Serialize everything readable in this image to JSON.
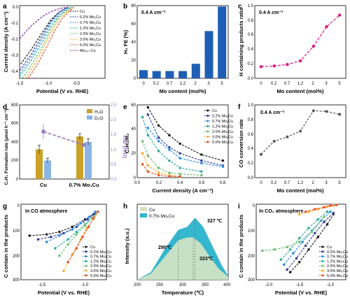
{
  "figure": {
    "colors": {
      "Cu": "#111111",
      "0.2%": "#283593",
      "0.7%": "#1e88e5",
      "1.2%": "#26a69a",
      "2.0%": "#66bb6a",
      "3.0%": "#f9a825",
      "5.0%": "#e64a19",
      "MoN": "#7b1fa2",
      "bar_blue": "#1e5eb5",
      "magenta": "#d81b80",
      "gold": "#c9a227",
      "lightblue": "#8ab6e6",
      "purple": "#9a7bbd"
    }
  },
  "chart_data": [
    {
      "panel": "a",
      "type": "line",
      "xlabel": "Potential (V vs. RHE)",
      "ylabel": "Current density (A cm⁻²)",
      "xlim": [
        -1.5,
        0
      ],
      "ylim": [
        -0.45,
        0
      ],
      "xticks": [
        "-1.5",
        "-1.0",
        "-0.5"
      ],
      "yticks": [
        "0.0",
        "-0.1",
        "-0.2",
        "-0.3",
        "-0.4"
      ],
      "legend": [
        "Cu",
        "0.2% Mo₁Cu",
        "0.7% Mo₁Cu",
        "1.2% Mo₁Cu",
        "2.0% Mo₁Cu",
        "3.0% Mo₁Cu",
        "5.0% Mo₁Cu",
        "Moₙₚₛ-Cu"
      ],
      "series": [
        {
          "name": "Cu",
          "x": [
            -1.48,
            -1.3,
            -1.1,
            -0.95,
            -0.8,
            -0.65
          ],
          "y": [
            -0.36,
            -0.27,
            -0.16,
            -0.08,
            -0.03,
            0.0
          ]
        },
        {
          "name": "0.2% Mo₁Cu",
          "x": [
            -1.5,
            -1.3,
            -1.1,
            -0.95,
            -0.8,
            -0.65
          ],
          "y": [
            -0.4,
            -0.3,
            -0.18,
            -0.09,
            -0.03,
            0.0
          ]
        },
        {
          "name": "0.7% Mo₁Cu",
          "x": [
            -1.5,
            -1.3,
            -1.1,
            -0.95,
            -0.8,
            -0.62
          ],
          "y": [
            -0.42,
            -0.32,
            -0.2,
            -0.1,
            -0.04,
            0.0
          ]
        },
        {
          "name": "1.2% Mo₁Cu",
          "x": [
            -1.5,
            -1.3,
            -1.1,
            -0.95,
            -0.8,
            -0.6
          ],
          "y": [
            -0.44,
            -0.34,
            -0.22,
            -0.12,
            -0.05,
            0.0
          ]
        },
        {
          "name": "2.0% Mo₁Cu",
          "x": [
            -1.45,
            -1.3,
            -1.1,
            -0.95,
            -0.8,
            -0.58
          ],
          "y": [
            -0.45,
            -0.37,
            -0.25,
            -0.14,
            -0.06,
            0.0
          ]
        },
        {
          "name": "3.0% Mo₁Cu",
          "x": [
            -1.4,
            -1.25,
            -1.1,
            -0.95,
            -0.8,
            -0.55
          ],
          "y": [
            -0.45,
            -0.37,
            -0.27,
            -0.16,
            -0.07,
            0.0
          ]
        },
        {
          "name": "5.0% Mo₁Cu",
          "x": [
            -1.35,
            -1.2,
            -1.05,
            -0.9,
            -0.75,
            -0.55
          ],
          "y": [
            -0.45,
            -0.37,
            -0.27,
            -0.16,
            -0.07,
            0.0
          ]
        },
        {
          "name": "Moₙₚₛ-Cu",
          "x": [
            -1.5,
            -1.3,
            -1.1,
            -0.95,
            -0.8,
            -0.65
          ],
          "y": [
            -0.2,
            -0.12,
            -0.06,
            -0.03,
            -0.01,
            0.0
          ]
        }
      ]
    },
    {
      "panel": "b",
      "type": "bar",
      "title": "0.4 A cm⁻²",
      "xlabel": "Mo content (mol%)",
      "ylabel": "H₂ FE (%)",
      "categories": [
        "0",
        "0.2",
        "0.7",
        "1.2",
        "2",
        "3",
        "5"
      ],
      "values": [
        9,
        8,
        8,
        8,
        16,
        52,
        79
      ],
      "ylim": [
        0,
        80
      ],
      "yticks": [
        "0",
        "20",
        "40",
        "60",
        "80"
      ]
    },
    {
      "panel": "c",
      "type": "line",
      "title": "0.4 A cm⁻²",
      "xlabel": "Mo content (mol%)",
      "ylabel": "H containing products ratio",
      "categories": [
        "0",
        "0.2",
        "0.7",
        "1.2",
        "2",
        "3",
        "5"
      ],
      "values": [
        0.16,
        0.17,
        0.19,
        0.24,
        0.44,
        0.71,
        0.87
      ],
      "ylim": [
        0,
        1.0
      ],
      "yticks": [
        "0.0",
        "0.2",
        "0.4",
        "0.6",
        "0.8",
        "1.0"
      ]
    },
    {
      "panel": "d",
      "type": "bar",
      "xlabel": "",
      "ylabel": "C₂H₄ Formation rate (μmol h⁻¹ cm⁻²)",
      "y2label": "KIE (H/D)",
      "categories": [
        "Cu",
        "0.7% Mo₁Cu"
      ],
      "series": [
        {
          "name": "H₂O",
          "values": [
            320,
            460
          ],
          "errors": [
            45,
            30
          ]
        },
        {
          "name": "D₂O",
          "values": [
            200,
            400
          ],
          "errors": [
            25,
            35
          ]
        }
      ],
      "kie": {
        "values": [
          1.6,
          1.15
        ],
        "errors": [
          0.25,
          0.05
        ]
      },
      "ylim": [
        0,
        800
      ],
      "y2lim": [
        0,
        2.5
      ],
      "yticks": [
        "0",
        "200",
        "400",
        "600",
        "800"
      ],
      "y2ticks": [
        "0.0",
        "0.5",
        "1.0",
        "1.5",
        "2.0",
        "2.5"
      ]
    },
    {
      "panel": "e",
      "type": "line",
      "xlabel": "Current density (A cm⁻²)",
      "ylabel": "C₂H₄/H₂",
      "xlim": [
        0,
        0.85
      ],
      "ylim": [
        0,
        60
      ],
      "xticks": [
        "0.0",
        "0.2",
        "0.4",
        "0.6",
        "0.8"
      ],
      "yticks": [
        "0",
        "20",
        "40",
        "60"
      ],
      "legend": [
        "Cu",
        "0.2% Mo₁Cu",
        "0.7% Mo₁Cu",
        "1.2% Mo₁Cu",
        "2.0% Mo₁Cu",
        "3.0% Mo₁Cu",
        "5.0% Mo₁Cu"
      ],
      "series": [
        {
          "name": "Cu",
          "x": [
            0.1,
            0.2,
            0.3,
            0.4,
            0.6,
            0.8
          ],
          "y": [
            58,
            43,
            35,
            28,
            19,
            14
          ]
        },
        {
          "name": "0.2% Mo₁Cu",
          "x": [
            0.1,
            0.2,
            0.3,
            0.4,
            0.6,
            0.8
          ],
          "y": [
            52,
            33,
            25,
            20,
            14,
            10
          ]
        },
        {
          "name": "0.7% Mo₁Cu",
          "x": [
            0.1,
            0.2,
            0.3,
            0.4,
            0.6,
            0.8
          ],
          "y": [
            41,
            30,
            23,
            16,
            12,
            9
          ]
        },
        {
          "name": "1.2% Mo₁Cu",
          "x": [
            0.05,
            0.1,
            0.2,
            0.3,
            0.4,
            0.6
          ],
          "y": [
            50,
            35,
            22,
            14,
            8,
            5
          ]
        },
        {
          "name": "2.0% Mo₁Cu",
          "x": [
            0.05,
            0.1,
            0.2,
            0.3,
            0.4,
            0.6
          ],
          "y": [
            30,
            18,
            8,
            4,
            3,
            2
          ]
        },
        {
          "name": "3.0% Mo₁Cu",
          "x": [
            0.05,
            0.1,
            0.2,
            0.3,
            0.4
          ],
          "y": [
            20,
            10,
            4,
            2,
            1
          ]
        },
        {
          "name": "5.0% Mo₁Cu",
          "x": [
            0.05,
            0.1,
            0.2,
            0.3,
            0.4
          ],
          "y": [
            11,
            5,
            2,
            1,
            1
          ]
        }
      ]
    },
    {
      "panel": "f",
      "type": "line",
      "title": "0.4 A cm⁻²",
      "xlabel": "Mo content (mol%)",
      "ylabel": "CO conversion rate",
      "categories": [
        "0",
        "0.2",
        "0.7",
        "1.2",
        "2",
        "3",
        "5"
      ],
      "values": [
        0.32,
        0.5,
        0.56,
        0.64,
        0.92,
        0.91,
        0.87
      ],
      "ylim": [
        0,
        1.0
      ],
      "yticks": [
        "0.0",
        "0.2",
        "0.4",
        "0.6",
        "0.8",
        "1.0"
      ]
    },
    {
      "panel": "g",
      "type": "line",
      "title": "In CO atmosphere",
      "xlabel": "Potential (V vs. RHE)",
      "ylabel": "C contain in the products",
      "xlim": [
        -1.75,
        -0.75
      ],
      "ylim": [
        300,
        0
      ],
      "xticks": [
        "-1.5",
        "-1.0"
      ],
      "yticks": [
        "0",
        "100",
        "200",
        "300"
      ],
      "legend": [
        "Cu",
        "0.2% Mo₁Cu",
        "0.7% Mo₁Cu",
        "1.2% Mo₁Cu",
        "2.0% Mo₁Cu",
        "3.0% Mo₁Cu",
        "5.0% Mo₁Cu"
      ],
      "series": [
        {
          "name": "Cu",
          "x": [
            -1.65,
            -1.45,
            -1.3,
            -1.15,
            -1.0,
            -0.9
          ],
          "y": [
            125,
            120,
            110,
            90,
            60,
            40
          ]
        },
        {
          "name": "0.2% Mo₁Cu",
          "x": [
            -1.55,
            -1.4,
            -1.25,
            -1.1,
            -0.97,
            -0.88
          ],
          "y": [
            140,
            130,
            115,
            90,
            60,
            35
          ]
        },
        {
          "name": "0.7% Mo₁Cu",
          "x": [
            -1.45,
            -1.3,
            -1.15,
            -1.05,
            -0.95,
            -0.88
          ],
          "y": [
            150,
            125,
            100,
            75,
            50,
            30
          ]
        },
        {
          "name": "1.2% Mo₁Cu",
          "x": [
            -1.35,
            -1.2,
            -1.1,
            -1.0,
            -0.92,
            -0.85
          ],
          "y": [
            175,
            140,
            110,
            80,
            55,
            30
          ]
        },
        {
          "name": "2.0% Mo₁Cu",
          "x": [
            -1.3,
            -1.2,
            -1.1,
            -1.0,
            -0.92,
            -0.85
          ],
          "y": [
            205,
            160,
            120,
            85,
            55,
            30
          ]
        },
        {
          "name": "3.0% Mo₁Cu",
          "x": [
            -1.25,
            -1.15,
            -1.05,
            -0.98,
            -0.9,
            -0.85
          ],
          "y": [
            265,
            200,
            140,
            95,
            60,
            30
          ]
        },
        {
          "name": "5.0% Mo₁Cu",
          "x": [
            -1.2,
            -1.1,
            -1.03,
            -0.96,
            -0.9,
            -0.85
          ],
          "y": [
            230,
            175,
            130,
            90,
            55,
            30
          ]
        }
      ]
    },
    {
      "panel": "h",
      "type": "area",
      "xlabel": "Temperature (℃)",
      "ylabel": "Intensity (a.u.)",
      "xlim": [
        200,
        400
      ],
      "xticks": [
        "200",
        "250",
        "300",
        "350",
        "400"
      ],
      "legend": [
        "Cu",
        "0.7% Mo₁Cu"
      ],
      "series": [
        {
          "name": "Cu",
          "x": [
            200,
            230,
            260,
            290,
            310,
            323,
            340,
            360,
            380,
            400
          ],
          "y": [
            0,
            0.08,
            0.3,
            0.52,
            0.56,
            0.56,
            0.48,
            0.3,
            0.14,
            0.04
          ]
        },
        {
          "name": "0.7% Mo₁Cu",
          "x": [
            200,
            230,
            260,
            290,
            310,
            327,
            345,
            365,
            385,
            400
          ],
          "y": [
            0,
            0.1,
            0.4,
            0.66,
            0.7,
            0.82,
            0.7,
            0.45,
            0.2,
            0.05
          ]
        }
      ],
      "annotations": [
        "327 ℃",
        "290℃",
        "323℃"
      ]
    },
    {
      "panel": "i",
      "type": "line",
      "title": "In CO₂ atmosphere",
      "xlabel": "Potential (V vs. RHE)",
      "ylabel": "C contain in the products",
      "xlim": [
        -2.2,
        -0.75
      ],
      "ylim": [
        300,
        0
      ],
      "xticks": [
        "-2.0",
        "-1.5",
        "-1.0"
      ],
      "yticks": [
        "0",
        "100",
        "200",
        "300"
      ],
      "legend": [
        "Cu",
        "0.2% Mo₁Cu",
        "0.7% Mo₁Cu",
        "1.2% Mo₁Cu",
        "2.0% Mo₁Cu",
        "3.0% Mo₁Cu",
        "5.0% Mo₁Cu"
      ],
      "series": [
        {
          "name": "Cu",
          "x": [
            -1.65,
            -1.5,
            -1.35,
            -1.2,
            -1.05,
            -0.95
          ],
          "y": [
            270,
            230,
            180,
            130,
            80,
            40
          ]
        },
        {
          "name": "0.2% Mo₁Cu",
          "x": [
            -1.7,
            -1.55,
            -1.4,
            -1.25,
            -1.1,
            -0.95
          ],
          "y": [
            260,
            215,
            165,
            115,
            70,
            35
          ]
        },
        {
          "name": "0.7% Mo₁Cu",
          "x": [
            -1.75,
            -1.6,
            -1.45,
            -1.3,
            -1.15,
            -1.0
          ],
          "y": [
            240,
            195,
            150,
            105,
            65,
            30
          ]
        },
        {
          "name": "1.2% Mo₁Cu",
          "x": [
            -1.8,
            -1.65,
            -1.5,
            -1.35,
            -1.2,
            -1.05
          ],
          "y": [
            220,
            180,
            135,
            95,
            60,
            30
          ]
        },
        {
          "name": "2.0% Mo₁Cu",
          "x": [
            -2.1,
            -1.9,
            -1.7,
            -1.5,
            -1.3,
            -1.1
          ],
          "y": [
            185,
            180,
            170,
            150,
            110,
            50
          ]
        },
        {
          "name": "3.0% Mo₁Cu",
          "x": [
            -1.5,
            -1.35,
            -1.2,
            -1.05,
            -0.95
          ],
          "y": [
            40,
            30,
            20,
            10,
            5
          ]
        },
        {
          "name": "5.0% Mo₁Cu",
          "x": [
            -1.4,
            -1.25,
            -1.1,
            -1.0,
            -0.9
          ],
          "y": [
            30,
            20,
            12,
            6,
            3
          ]
        }
      ]
    }
  ],
  "labels": {
    "a": {
      "letter": "a",
      "ylabel": "Current density (A cm⁻²)",
      "xlabel": "Potential (V vs. RHE)",
      "legend": [
        "Cu",
        "0.2% Mo₁Cu",
        "0.7% Mo₁Cu",
        "1.2% Mo₁Cu",
        "2.0% Mo₁Cu",
        "3.0% Mo₁Cu",
        "5.0% Mo₁Cu",
        "Moₙₚₛ-Cu"
      ],
      "xt": [
        "-1.5",
        "-1.0",
        "-0.5"
      ],
      "yt": [
        "0.0",
        "-0.1",
        "-0.2",
        "-0.3",
        "-0.4"
      ]
    },
    "b": {
      "letter": "b",
      "title": "0.4 A cm⁻²",
      "ylabel": "H₂ FE (%)",
      "xlabel": "Mo content (mol%)",
      "xt": [
        "0",
        "0.2",
        "0.7",
        "1.2",
        "2",
        "3",
        "5"
      ],
      "yt": [
        "0",
        "20",
        "40",
        "60",
        "80"
      ]
    },
    "c": {
      "letter": "c",
      "title": "0.4 A cm⁻²",
      "ylabel": "H containing products ratio",
      "xlabel": "Mo content (mol%)",
      "xt": [
        "0",
        "0.2",
        "0.7",
        "1.2",
        "2",
        "3",
        "5"
      ],
      "yt": [
        "0.0",
        "0.2",
        "0.4",
        "0.6",
        "0.8",
        "1.0"
      ]
    },
    "d": {
      "letter": "d",
      "ylabel": "C₂H₄ Formation rate (μmol h⁻¹ cm⁻²)",
      "y2label": "KIE (H/D)",
      "legend": [
        "H₂O",
        "D₂O"
      ],
      "xt": [
        "Cu",
        "0.7% Mo₁Cu"
      ],
      "yt": [
        "0",
        "200",
        "400",
        "600",
        "800"
      ],
      "y2t": [
        "0.0",
        "0.5",
        "1.0",
        "1.5",
        "2.0",
        "2.5"
      ]
    },
    "e": {
      "letter": "e",
      "ylabel": "C₂H₄/H₂",
      "xlabel": "Current density (A cm⁻²)",
      "legend": [
        "Cu",
        "0.2% Mo₁Cu",
        "0.7% Mo₁Cu",
        "1.2% Mo₁Cu",
        "2.0% Mo₁Cu",
        "3.0% Mo₁Cu",
        "5.0% Mo₁Cu"
      ],
      "xt": [
        "0.0",
        "0.2",
        "0.4",
        "0.6",
        "0.8"
      ],
      "yt": [
        "0",
        "20",
        "40",
        "60"
      ]
    },
    "f": {
      "letter": "f",
      "title": "0.4 A cm⁻²",
      "ylabel": "CO conversion rate",
      "xlabel": "Mo content (mol%)",
      "xt": [
        "0",
        "0.2",
        "0.7",
        "1.2",
        "2",
        "3",
        "5"
      ],
      "yt": [
        "0.0",
        "0.2",
        "0.4",
        "0.6",
        "0.8",
        "1.0"
      ]
    },
    "g": {
      "letter": "g",
      "title": "In CO atmosphere",
      "ylabel": "C contain in the products",
      "xlabel": "Potential (V vs. RHE)",
      "legend": [
        "Cu",
        "0.2% Mo₁Cu",
        "0.7% Mo₁Cu",
        "1.2% Mo₁Cu",
        "2.0% Mo₁Cu",
        "3.0% Mo₁Cu",
        "5.0% Mo₁Cu"
      ],
      "xt": [
        "-1.5",
        "-1.0"
      ],
      "yt": [
        "0",
        "100",
        "200",
        "300"
      ]
    },
    "h": {
      "letter": "h",
      "ylabel": "Intensity (a.u.)",
      "xlabel": "Temperature (℃)",
      "legend": [
        "Cu",
        "0.7% Mo₁Cu"
      ],
      "xt": [
        "200",
        "250",
        "300",
        "350",
        "400"
      ],
      "ann": [
        "327 ℃",
        "290℃",
        "323℃"
      ]
    },
    "i": {
      "letter": "i",
      "title": "In CO₂ atmosphere",
      "ylabel": "C contain in the products",
      "xlabel": "Potential (V vs. RHE)",
      "legend": [
        "Cu",
        "0.2% Mo₁Cu",
        "0.7% Mo₁Cu",
        "1.2% Mo₁Cu",
        "2.0% Mo₁Cu",
        "3.0% Mo₁Cu",
        "5.0% Mo₁Cu"
      ],
      "xt": [
        "-2.0",
        "-1.5",
        "-1.0"
      ],
      "yt": [
        "0",
        "100",
        "200",
        "300"
      ]
    }
  }
}
